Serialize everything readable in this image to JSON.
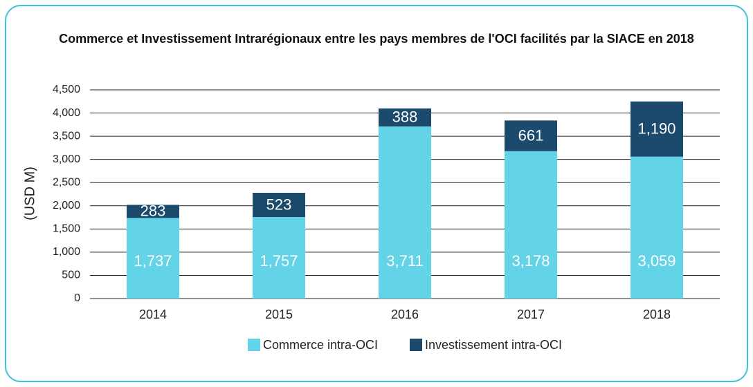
{
  "chart_data": {
    "type": "stacked-bar",
    "title": "Commerce et Investissement Intrarégionaux entre les pays membres de l'OCI facilités par la SIACE en 2018",
    "ylabel": "(USD M)",
    "categories": [
      "2014",
      "2015",
      "2016",
      "2017",
      "2018"
    ],
    "series": [
      {
        "name": "Commerce intra-OCI",
        "color": "#63d3e8",
        "values": [
          1737,
          1757,
          3711,
          3178,
          3059
        ],
        "value_labels": [
          "1,737",
          "1,757",
          "3,711",
          "3,178",
          "3,059"
        ]
      },
      {
        "name": "Investissement intra-OCI",
        "color": "#1b4a6d",
        "values": [
          283,
          523,
          388,
          661,
          1190
        ],
        "value_labels": [
          "283",
          "523",
          "388",
          "661",
          "1,190"
        ]
      }
    ],
    "ylim": [
      0,
      4500
    ],
    "yticks": [
      0,
      500,
      {
        "value": 1000,
        "label": "1,000"
      },
      {
        "value": 1500,
        "label": "1,500"
      },
      {
        "value": 2000,
        "label": "2,000"
      },
      {
        "value": 2500,
        "label": "2,500"
      },
      {
        "value": 3000,
        "label": "3,000"
      },
      {
        "value": 3500,
        "label": "3,500"
      },
      {
        "value": 4000,
        "label": "4,000"
      },
      {
        "value": 4500,
        "label": "4,500"
      }
    ],
    "grid": true,
    "legend": "bottom"
  }
}
